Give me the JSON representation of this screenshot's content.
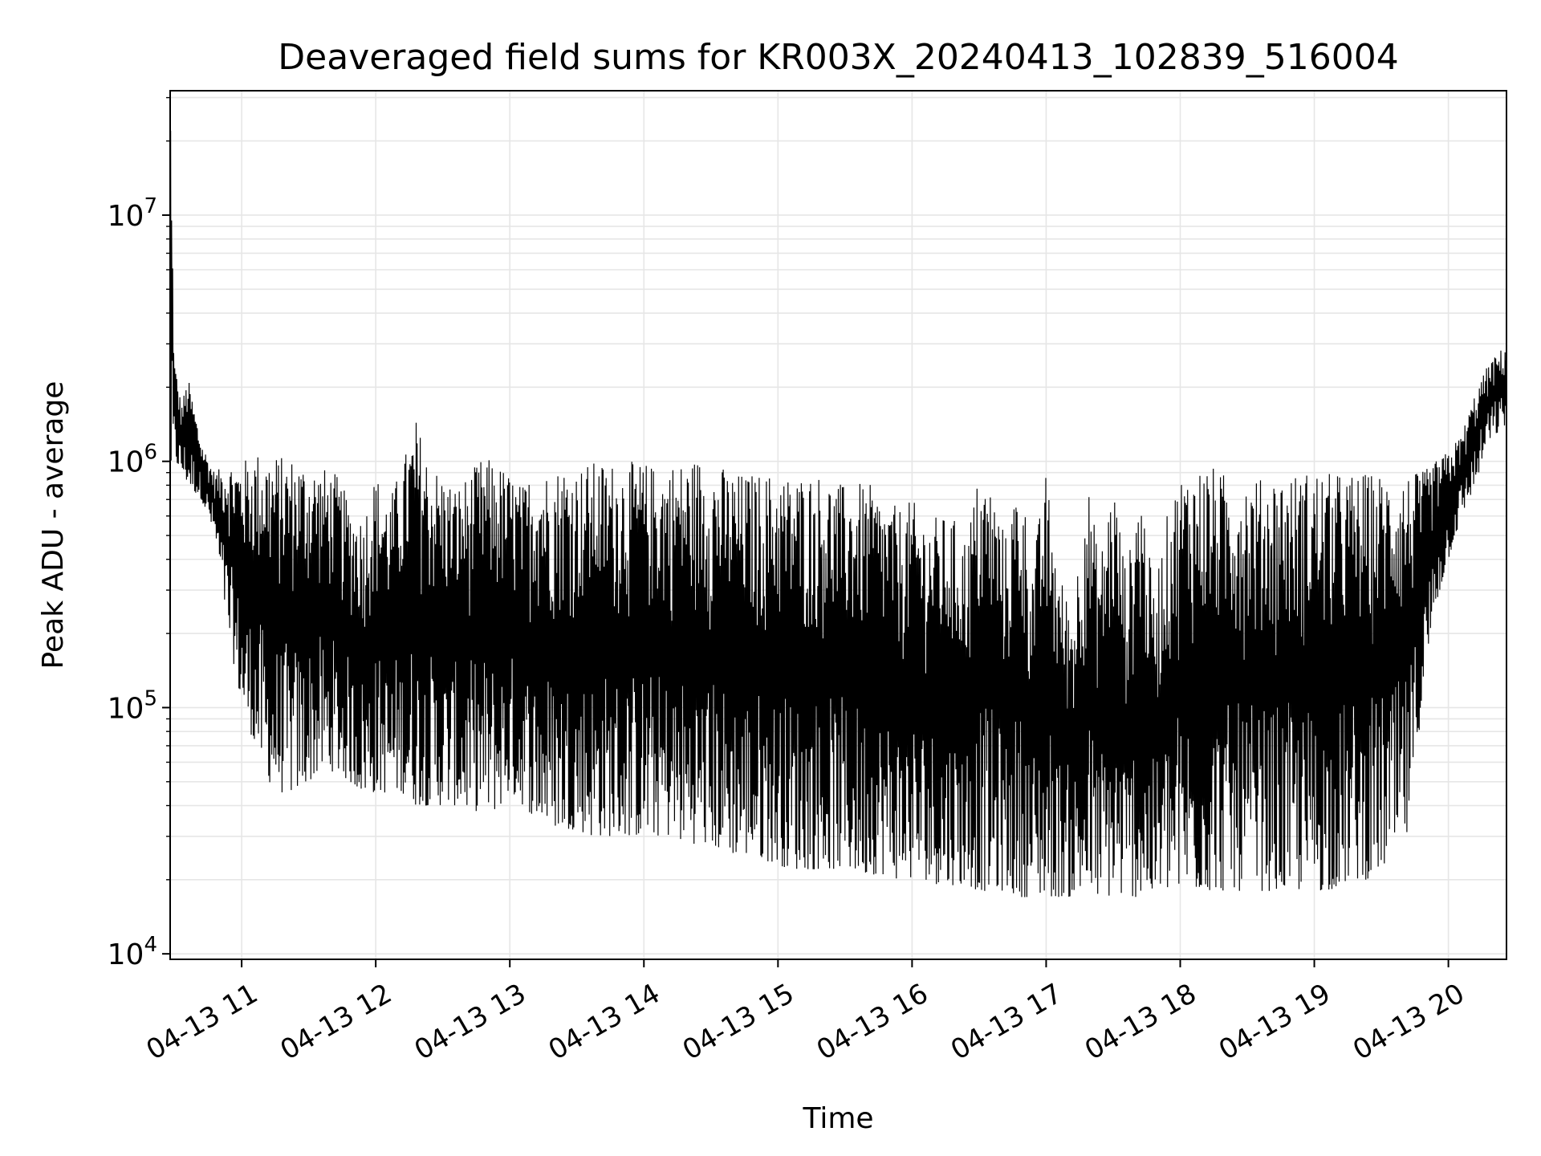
{
  "chart_data": {
    "type": "line",
    "title": "Deaveraged field sums for KR003X_20240413_102839_516004",
    "xlabel": "Time",
    "ylabel": "Peak ADU - average",
    "x_tick_labels": [
      "04-13 11",
      "04-13 12",
      "04-13 13",
      "04-13 14",
      "04-13 15",
      "04-13 16",
      "04-13 17",
      "04-13 18",
      "04-13 19",
      "04-13 20"
    ],
    "y_tick_labels": [
      {
        "base": "10",
        "exp": "4"
      },
      {
        "base": "10",
        "exp": "5"
      },
      {
        "base": "10",
        "exp": "6"
      },
      {
        "base": "10",
        "exp": "7"
      }
    ],
    "x_range": [
      "2024-04-13 10:28",
      "2024-04-13 20:26"
    ],
    "y_range": [
      9500,
      32000000
    ],
    "y_scale": "log",
    "grid": true,
    "line_color": "#000000",
    "series": [
      {
        "x_hours": [
          10.47,
          10.5,
          10.55,
          10.6,
          10.7,
          10.8,
          10.9,
          11.0,
          11.1,
          11.2,
          11.3,
          11.4,
          11.5,
          11.6,
          11.7,
          11.8,
          11.9,
          12.0,
          12.1,
          12.2,
          12.3,
          12.4,
          12.5,
          12.6,
          12.7,
          12.8,
          12.9,
          13.0,
          13.1,
          13.2,
          13.3,
          13.4,
          13.5,
          13.6,
          13.7,
          13.8,
          13.9,
          14.0,
          14.1,
          14.2,
          14.3,
          14.4,
          14.5,
          14.6,
          14.7,
          14.8,
          14.9,
          15.0,
          15.1,
          15.2,
          15.3,
          15.4,
          15.5,
          15.6,
          15.7,
          15.8,
          15.9,
          16.0,
          16.1,
          16.2,
          16.3,
          16.4,
          16.5,
          16.6,
          16.7,
          16.8,
          16.9,
          17.0,
          17.1,
          17.2,
          17.3,
          17.4,
          17.5,
          17.6,
          17.7,
          17.8,
          17.9,
          18.0,
          18.1,
          18.2,
          18.3,
          18.4,
          18.5,
          18.6,
          18.7,
          18.8,
          18.9,
          19.0,
          19.1,
          19.2,
          19.3,
          19.4,
          19.5,
          19.6,
          19.7,
          19.8,
          19.9,
          20.0,
          20.1,
          20.2,
          20.3,
          20.43
        ],
        "upper": [
          22000000,
          2600000,
          1700000,
          2200000,
          1200000,
          900000,
          1000000,
          1000000,
          1100000,
          1100000,
          1050000,
          1050000,
          1000000,
          950000,
          900000,
          700000,
          600000,
          900000,
          700000,
          1000000,
          1500000,
          1000000,
          900000,
          800000,
          900000,
          1050000,
          1000000,
          900000,
          800000,
          1000000,
          900000,
          1000000,
          950000,
          1000000,
          1000000,
          1000000,
          1000000,
          1000000,
          950000,
          1000000,
          1000000,
          1050000,
          1000000,
          950000,
          900000,
          900000,
          900000,
          900000,
          880000,
          900000,
          900000,
          850000,
          800000,
          820000,
          800000,
          700000,
          650000,
          700000,
          600000,
          600000,
          600000,
          500000,
          900000,
          800000,
          500000,
          950000,
          400000,
          900000,
          350000,
          250000,
          900000,
          400000,
          900000,
          350000,
          900000,
          300000,
          600000,
          900000,
          950000,
          1000000,
          900000,
          900000,
          900000,
          850000,
          900000,
          900000,
          900000,
          950000,
          900000,
          900000,
          900000,
          900000,
          900000,
          900000,
          900000,
          900000,
          1000000,
          1100000,
          1300000,
          1900000,
          2500000,
          3000000
        ],
        "lower": [
          800000,
          1000000,
          900000,
          800000,
          700000,
          500000,
          200000,
          100000,
          70000,
          50000,
          45000,
          45000,
          50000,
          55000,
          55000,
          50000,
          45000,
          45000,
          45000,
          45000,
          40000,
          40000,
          40000,
          40000,
          38000,
          38000,
          38000,
          45000,
          40000,
          35000,
          33000,
          32000,
          32000,
          30000,
          30000,
          30000,
          30000,
          30000,
          30000,
          30000,
          28000,
          28000,
          27000,
          26000,
          25000,
          25000,
          24000,
          23000,
          22000,
          22000,
          22000,
          22000,
          22000,
          21000,
          21000,
          21000,
          20000,
          20000,
          20000,
          19000,
          19000,
          19000,
          18000,
          18000,
          18000,
          17000,
          17000,
          17000,
          17000,
          17000,
          17000,
          17000,
          17000,
          17000,
          17000,
          17000,
          18000,
          18000,
          18000,
          18000,
          18000,
          18000,
          18000,
          18000,
          18000,
          18000,
          18000,
          18000,
          18000,
          19000,
          20000,
          20000,
          22000,
          25000,
          30000,
          100000,
          250000,
          400000,
          600000,
          800000,
          1200000,
          1400000
        ]
      }
    ]
  }
}
